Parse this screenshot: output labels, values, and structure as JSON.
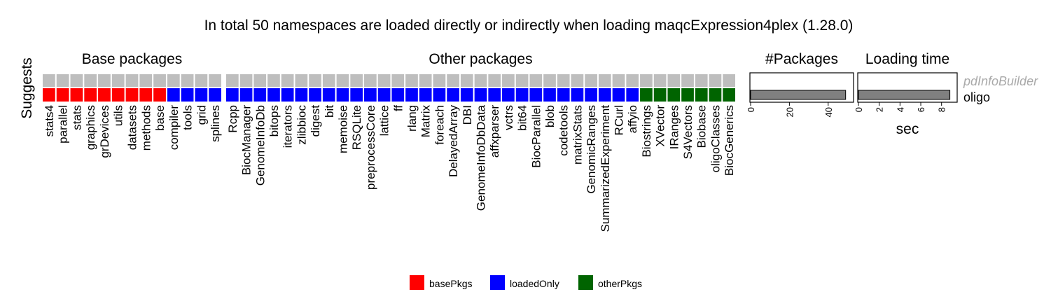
{
  "chart_data": {
    "type": "heatmap",
    "title": "In total 50 namespaces are loaded directly or indirectly when loading maqcExpression4plex (1.28.0)",
    "y_strip_label": "Suggests",
    "rows": [
      "pdInfoBuilder",
      "oligo"
    ],
    "colors": {
      "basePkgs": "#ff0000",
      "loadedOnly": "#0000ff",
      "otherPkgs": "#006400",
      "missing": "#bebebe",
      "bar_fill": "#808080",
      "muted_label": "#a9a9a9"
    },
    "panels": [
      {
        "title": "Base packages",
        "columns": [
          "stats4",
          "parallel",
          "stats",
          "graphics",
          "grDevices",
          "utils",
          "datasets",
          "methods",
          "base",
          "compiler",
          "tools",
          "grid",
          "splines"
        ],
        "oligo": [
          "basePkgs",
          "basePkgs",
          "basePkgs",
          "basePkgs",
          "basePkgs",
          "basePkgs",
          "basePkgs",
          "basePkgs",
          "basePkgs",
          "loadedOnly",
          "loadedOnly",
          "loadedOnly",
          "loadedOnly"
        ]
      },
      {
        "title": "Other packages",
        "columns": [
          "Rcpp",
          "BiocManager",
          "GenomeInfoDb",
          "bitops",
          "iterators",
          "zlibbioc",
          "digest",
          "bit",
          "memoise",
          "RSQLite",
          "preprocessCore",
          "lattice",
          "ff",
          "rlang",
          "Matrix",
          "foreach",
          "DelayedArray",
          "DBI",
          "GenomeInfoDbData",
          "affxparser",
          "vctrs",
          "bit64",
          "BiocParallel",
          "blob",
          "codetools",
          "matrixStats",
          "GenomicRanges",
          "SummarizedExperiment",
          "RCurl",
          "affyio",
          "Biostrings",
          "XVector",
          "IRanges",
          "S4Vectors",
          "Biobase",
          "oligoClasses",
          "BiocGenerics"
        ],
        "oligo": [
          "loadedOnly",
          "loadedOnly",
          "loadedOnly",
          "loadedOnly",
          "loadedOnly",
          "loadedOnly",
          "loadedOnly",
          "loadedOnly",
          "loadedOnly",
          "loadedOnly",
          "loadedOnly",
          "loadedOnly",
          "loadedOnly",
          "loadedOnly",
          "loadedOnly",
          "loadedOnly",
          "loadedOnly",
          "loadedOnly",
          "loadedOnly",
          "loadedOnly",
          "loadedOnly",
          "loadedOnly",
          "loadedOnly",
          "loadedOnly",
          "loadedOnly",
          "loadedOnly",
          "loadedOnly",
          "loadedOnly",
          "loadedOnly",
          "loadedOnly",
          "otherPkgs",
          "otherPkgs",
          "otherPkgs",
          "otherPkgs",
          "otherPkgs",
          "otherPkgs",
          "otherPkgs"
        ]
      }
    ],
    "legend": {
      "position": "bottom",
      "entries": [
        {
          "key": "basePkgs",
          "label": "basePkgs"
        },
        {
          "key": "loadedOnly",
          "label": "loadedOnly"
        },
        {
          "key": "otherPkgs",
          "label": "otherPkgs"
        }
      ]
    },
    "bar_panels": [
      {
        "type": "bar",
        "title": "#Packages",
        "xlabel": "",
        "xlim": [
          0,
          52
        ],
        "ticks": [
          "0",
          "20",
          "40"
        ],
        "tick_values": [
          0,
          20,
          40
        ],
        "values": {
          "pdInfoBuilder": null,
          "oligo": 49
        }
      },
      {
        "type": "bar",
        "title": "Loading time",
        "xlabel": "sec",
        "xlim": [
          0,
          9.3
        ],
        "ticks": [
          "0",
          "2",
          "4",
          "6",
          "8"
        ],
        "tick_values": [
          0,
          2,
          4,
          6,
          8
        ],
        "values": {
          "pdInfoBuilder": null,
          "oligo": 8.8
        }
      }
    ],
    "row_labels": [
      {
        "row": "pdInfoBuilder",
        "text": "pdInfoBuilder",
        "style": "italic-muted"
      },
      {
        "row": "oligo",
        "text": "oligo",
        "style": "normal"
      }
    ]
  }
}
